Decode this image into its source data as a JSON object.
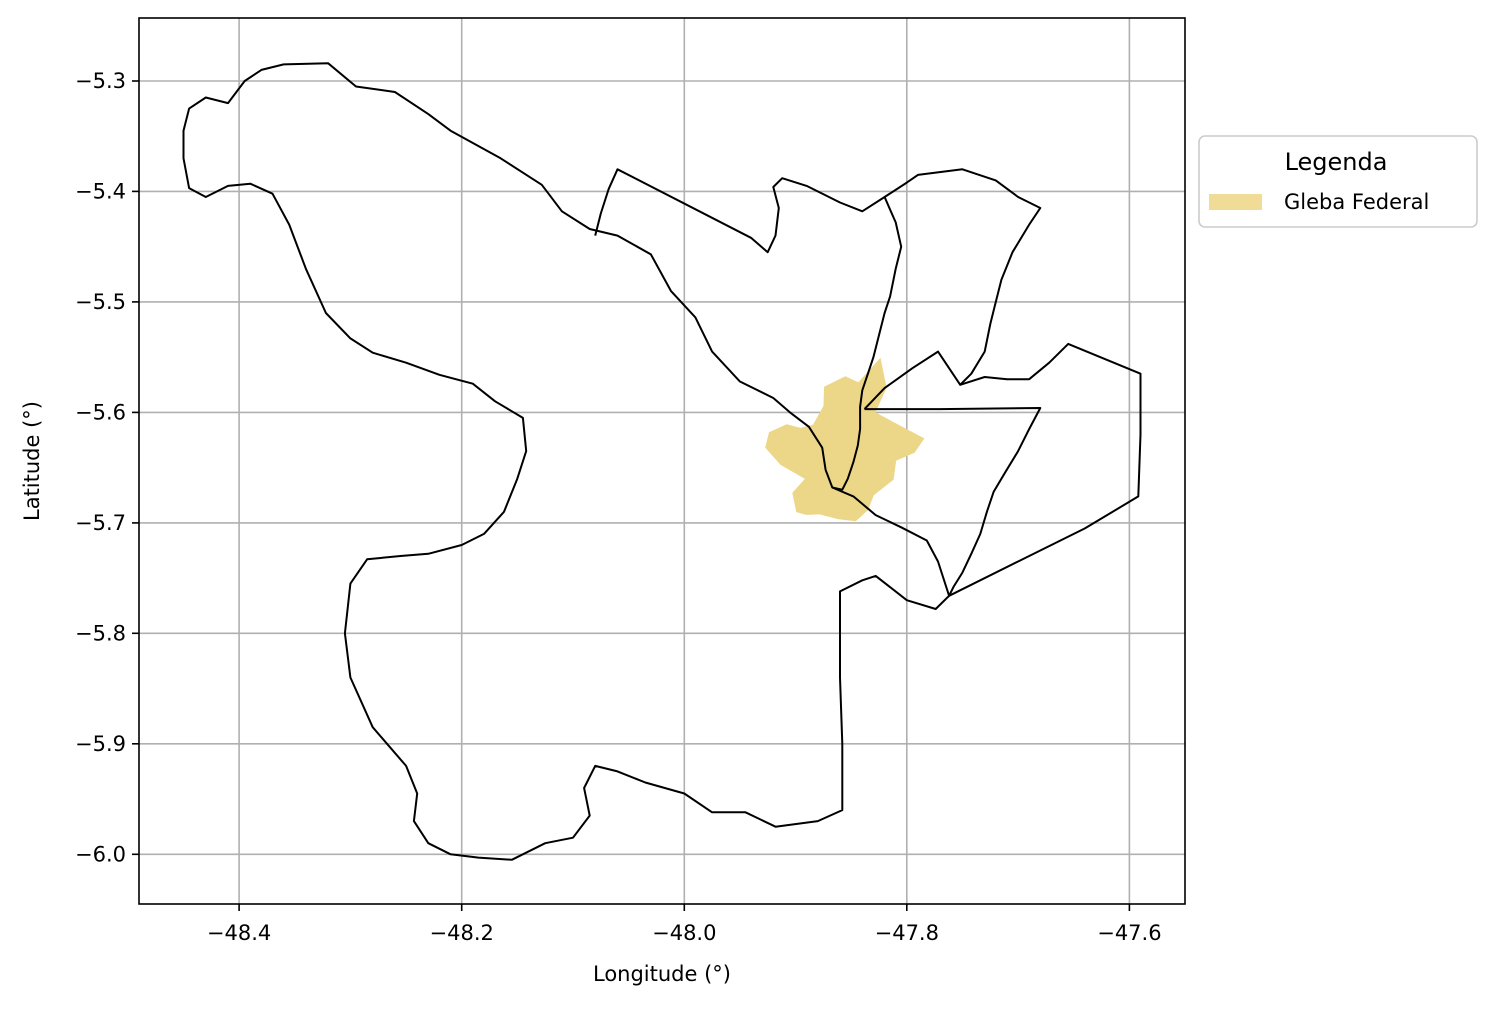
{
  "chart_data": {
    "type": "map",
    "title": "",
    "xlabel": "Longitude (°)",
    "ylabel": "Latitude (°)",
    "xlim": [
      -48.49,
      -47.55
    ],
    "ylim": [
      -6.045,
      -5.243
    ],
    "grid": true,
    "x_ticks": [
      {
        "value": -48.4,
        "label": "−48.4"
      },
      {
        "value": -48.2,
        "label": "−48.2"
      },
      {
        "value": -48.0,
        "label": "−48.0"
      },
      {
        "value": -47.8,
        "label": "−47.8"
      },
      {
        "value": -47.6,
        "label": "−47.6"
      }
    ],
    "y_ticks": [
      {
        "value": -5.3,
        "label": "−5.3"
      },
      {
        "value": -5.4,
        "label": "−5.4"
      },
      {
        "value": -5.5,
        "label": "−5.5"
      },
      {
        "value": -5.6,
        "label": "−5.6"
      },
      {
        "value": -5.7,
        "label": "−5.7"
      },
      {
        "value": -5.8,
        "label": "−5.8"
      },
      {
        "value": -5.9,
        "label": "−5.9"
      },
      {
        "value": -6.0,
        "label": "−6.0"
      }
    ],
    "legend": {
      "title": "Legenda",
      "placement": "outside-upper-right",
      "entries": [
        {
          "label": "Gleba Federal",
          "color": "#f0dc96"
        }
      ]
    },
    "colors": {
      "gleba_fill": "#ecd789",
      "boundary": "#000000",
      "grid": "#b0b0b0"
    },
    "layers": {
      "gleba": [
        [
          -47.8955,
          -5.614
        ],
        [
          -47.8843,
          -5.6111
        ],
        [
          -47.8749,
          -5.5941
        ],
        [
          -47.8744,
          -5.5768
        ],
        [
          -47.8553,
          -5.5672
        ],
        [
          -47.8436,
          -5.5728
        ],
        [
          -47.8236,
          -5.5505
        ],
        [
          -47.8182,
          -5.5777
        ],
        [
          -47.8281,
          -5.6
        ],
        [
          -47.8125,
          -5.6084
        ],
        [
          -47.7979,
          -5.6163
        ],
        [
          -47.7842,
          -5.6235
        ],
        [
          -47.793,
          -5.6365
        ],
        [
          -47.8095,
          -5.6436
        ],
        [
          -47.8119,
          -5.6609
        ],
        [
          -47.8296,
          -5.6749
        ],
        [
          -47.8351,
          -5.6887
        ],
        [
          -47.8459,
          -5.6985
        ],
        [
          -47.8615,
          -5.6967
        ],
        [
          -47.8784,
          -5.6923
        ],
        [
          -47.8904,
          -5.6928
        ],
        [
          -47.8993,
          -5.6903
        ],
        [
          -47.9029,
          -5.6729
        ],
        [
          -47.8917,
          -5.6602
        ],
        [
          -47.9135,
          -5.6475
        ],
        [
          -47.9273,
          -5.6319
        ],
        [
          -47.9238,
          -5.618
        ],
        [
          -47.9079,
          -5.6108
        ]
      ],
      "boundaries": [
        [
          [
            -48.36,
            -5.285
          ],
          [
            -48.32,
            -5.284
          ],
          [
            -48.295,
            -5.305
          ],
          [
            -48.26,
            -5.31
          ],
          [
            -48.23,
            -5.33
          ],
          [
            -48.21,
            -5.345
          ],
          [
            -48.165,
            -5.37
          ],
          [
            -48.128,
            -5.394
          ],
          [
            -48.11,
            -5.418
          ],
          [
            -48.085,
            -5.434
          ],
          [
            -48.06,
            -5.44
          ],
          [
            -48.03,
            -5.457
          ],
          [
            -48.012,
            -5.49
          ],
          [
            -47.99,
            -5.514
          ],
          [
            -47.975,
            -5.545
          ],
          [
            -47.95,
            -5.572
          ],
          [
            -47.92,
            -5.587
          ],
          [
            -47.905,
            -5.6
          ],
          [
            -47.888,
            -5.613
          ],
          [
            -47.876,
            -5.632
          ],
          [
            -47.873,
            -5.652
          ],
          [
            -47.867,
            -5.668
          ],
          [
            -47.848,
            -5.676
          ],
          [
            -47.828,
            -5.693
          ],
          [
            -47.805,
            -5.704
          ],
          [
            -47.782,
            -5.716
          ],
          [
            -47.772,
            -5.735
          ],
          [
            -47.762,
            -5.766
          ],
          [
            -47.774,
            -5.778
          ],
          [
            -47.8,
            -5.77
          ],
          [
            -47.828,
            -5.748
          ],
          [
            -47.84,
            -5.752
          ],
          [
            -47.86,
            -5.762
          ],
          [
            -47.86,
            -5.84
          ],
          [
            -47.858,
            -5.9
          ],
          [
            -47.858,
            -5.96
          ],
          [
            -47.88,
            -5.97
          ],
          [
            -47.918,
            -5.975
          ],
          [
            -47.945,
            -5.962
          ],
          [
            -47.975,
            -5.962
          ],
          [
            -48.0,
            -5.945
          ],
          [
            -48.035,
            -5.935
          ],
          [
            -48.06,
            -5.925
          ],
          [
            -48.08,
            -5.92
          ],
          [
            -48.09,
            -5.94
          ],
          [
            -48.085,
            -5.965
          ],
          [
            -48.1,
            -5.985
          ],
          [
            -48.125,
            -5.99
          ],
          [
            -48.155,
            -6.005
          ],
          [
            -48.185,
            -6.003
          ],
          [
            -48.21,
            -6.0
          ],
          [
            -48.23,
            -5.99
          ],
          [
            -48.243,
            -5.97
          ],
          [
            -48.24,
            -5.945
          ],
          [
            -48.25,
            -5.92
          ],
          [
            -48.28,
            -5.885
          ],
          [
            -48.3,
            -5.84
          ],
          [
            -48.305,
            -5.8
          ],
          [
            -48.3,
            -5.755
          ],
          [
            -48.285,
            -5.733
          ],
          [
            -48.255,
            -5.73
          ],
          [
            -48.23,
            -5.728
          ],
          [
            -48.2,
            -5.72
          ],
          [
            -48.18,
            -5.71
          ],
          [
            -48.162,
            -5.69
          ],
          [
            -48.15,
            -5.66
          ],
          [
            -48.142,
            -5.635
          ],
          [
            -48.145,
            -5.605
          ],
          [
            -48.17,
            -5.59
          ],
          [
            -48.19,
            -5.574
          ],
          [
            -48.22,
            -5.566
          ],
          [
            -48.25,
            -5.555
          ],
          [
            -48.28,
            -5.546
          ],
          [
            -48.3,
            -5.533
          ],
          [
            -48.322,
            -5.51
          ],
          [
            -48.34,
            -5.47
          ],
          [
            -48.355,
            -5.43
          ],
          [
            -48.37,
            -5.402
          ],
          [
            -48.39,
            -5.393
          ],
          [
            -48.41,
            -5.395
          ],
          [
            -48.43,
            -5.405
          ],
          [
            -48.445,
            -5.397
          ],
          [
            -48.45,
            -5.37
          ],
          [
            -48.45,
            -5.345
          ],
          [
            -48.445,
            -5.325
          ],
          [
            -48.43,
            -5.315
          ],
          [
            -48.41,
            -5.32
          ],
          [
            -48.395,
            -5.3
          ],
          [
            -48.38,
            -5.29
          ],
          [
            -48.36,
            -5.285
          ]
        ],
        [
          [
            -48.08,
            -5.44
          ],
          [
            -48.075,
            -5.42
          ],
          [
            -48.068,
            -5.398
          ],
          [
            -48.06,
            -5.38
          ],
          [
            -47.94,
            -5.442
          ],
          [
            -47.925,
            -5.455
          ],
          [
            -47.918,
            -5.44
          ],
          [
            -47.915,
            -5.415
          ],
          [
            -47.92,
            -5.396
          ],
          [
            -47.912,
            -5.388
          ],
          [
            -47.89,
            -5.395
          ],
          [
            -47.86,
            -5.41
          ],
          [
            -47.84,
            -5.418
          ],
          [
            -47.82,
            -5.405
          ],
          [
            -47.8,
            -5.392
          ],
          [
            -47.79,
            -5.385
          ],
          [
            -47.75,
            -5.38
          ],
          [
            -47.72,
            -5.39
          ],
          [
            -47.7,
            -5.405
          ],
          [
            -47.68,
            -5.415
          ],
          [
            -47.69,
            -5.43
          ],
          [
            -47.705,
            -5.455
          ],
          [
            -47.715,
            -5.48
          ],
          [
            -47.72,
            -5.5
          ],
          [
            -47.725,
            -5.52
          ],
          [
            -47.73,
            -5.545
          ],
          [
            -47.742,
            -5.565
          ],
          [
            -47.752,
            -5.575
          ]
        ],
        [
          [
            -47.82,
            -5.405
          ],
          [
            -47.81,
            -5.428
          ],
          [
            -47.805,
            -5.45
          ],
          [
            -47.81,
            -5.47
          ],
          [
            -47.815,
            -5.495
          ],
          [
            -47.82,
            -5.51
          ],
          [
            -47.825,
            -5.53
          ],
          [
            -47.83,
            -5.55
          ],
          [
            -47.835,
            -5.565
          ],
          [
            -47.84,
            -5.58
          ],
          [
            -47.842,
            -5.595
          ],
          [
            -47.842,
            -5.615
          ],
          [
            -47.844,
            -5.63
          ],
          [
            -47.848,
            -5.645
          ],
          [
            -47.853,
            -5.66
          ],
          [
            -47.858,
            -5.67
          ],
          [
            -47.867,
            -5.668
          ]
        ],
        [
          [
            -47.838,
            -5.597
          ],
          [
            -47.82,
            -5.578
          ],
          [
            -47.795,
            -5.56
          ],
          [
            -47.772,
            -5.545
          ],
          [
            -47.752,
            -5.575
          ],
          [
            -47.73,
            -5.568
          ],
          [
            -47.71,
            -5.57
          ],
          [
            -47.69,
            -5.57
          ],
          [
            -47.672,
            -5.555
          ],
          [
            -47.655,
            -5.538
          ],
          [
            -47.59,
            -5.565
          ],
          [
            -47.59,
            -5.62
          ],
          [
            -47.592,
            -5.676
          ],
          [
            -47.64,
            -5.705
          ],
          [
            -47.7,
            -5.735
          ],
          [
            -47.762,
            -5.766
          ]
        ],
        [
          [
            -47.838,
            -5.597
          ],
          [
            -47.77,
            -5.597
          ],
          [
            -47.68,
            -5.596
          ],
          [
            -47.69,
            -5.615
          ],
          [
            -47.7,
            -5.635
          ],
          [
            -47.712,
            -5.655
          ],
          [
            -47.722,
            -5.672
          ],
          [
            -47.728,
            -5.69
          ],
          [
            -47.734,
            -5.71
          ],
          [
            -47.742,
            -5.728
          ],
          [
            -47.75,
            -5.745
          ],
          [
            -47.758,
            -5.758
          ],
          [
            -47.762,
            -5.766
          ]
        ]
      ]
    }
  }
}
